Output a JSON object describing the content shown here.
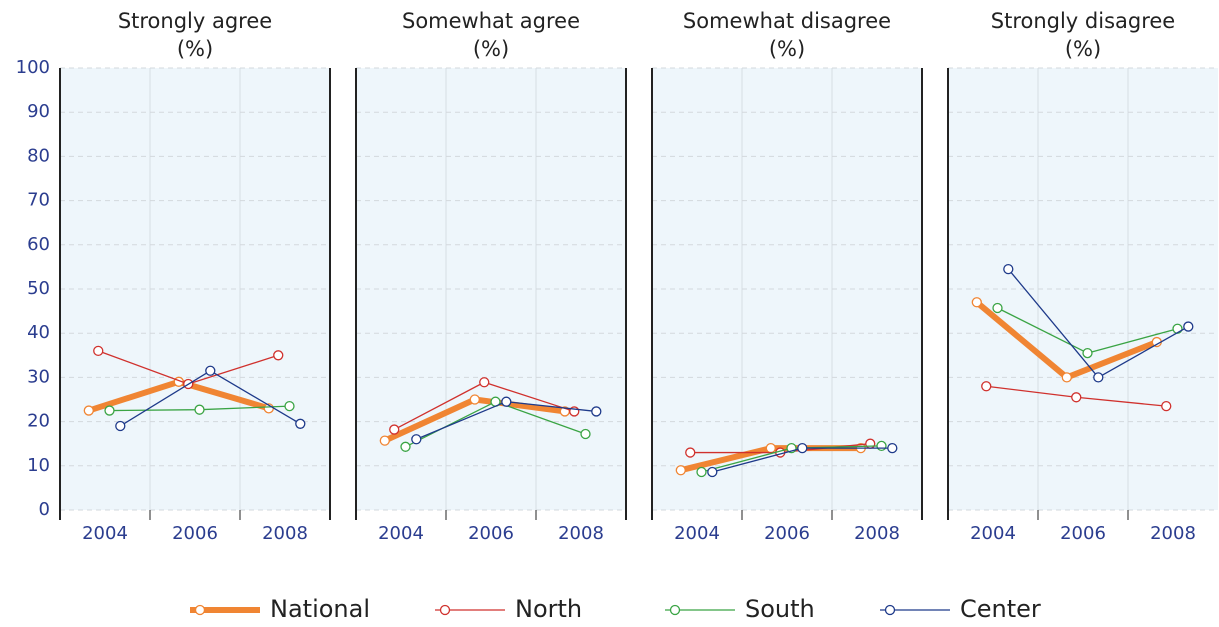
{
  "chart_data": [
    {
      "type": "line",
      "title": "Strongly agree",
      "subtitle": "(%)",
      "categories": [
        "2004",
        "2006",
        "2008"
      ],
      "ylim": [
        0,
        100
      ],
      "yticks": [
        0,
        10,
        20,
        30,
        40,
        50,
        60,
        70,
        80,
        90,
        100
      ],
      "grid": true,
      "series": [
        {
          "name": "National",
          "color": "#f08533",
          "width": 6,
          "values": [
            22.5,
            29,
            23
          ]
        },
        {
          "name": "North",
          "color": "#d0312d",
          "width": 1.3,
          "values": [
            36,
            28.5,
            35
          ]
        },
        {
          "name": "South",
          "color": "#3aa444",
          "width": 1.3,
          "values": [
            22.5,
            22.7,
            23.5
          ]
        },
        {
          "name": "Center",
          "color": "#1e3a8a",
          "width": 1.3,
          "values": [
            19,
            31.5,
            19.5
          ]
        }
      ]
    },
    {
      "type": "line",
      "title": "Somewhat agree",
      "subtitle": "(%)",
      "categories": [
        "2004",
        "2006",
        "2008"
      ],
      "ylim": [
        0,
        100
      ],
      "yticks": [
        0,
        10,
        20,
        30,
        40,
        50,
        60,
        70,
        80,
        90,
        100
      ],
      "grid": true,
      "series": [
        {
          "name": "National",
          "color": "#f08533",
          "width": 6,
          "values": [
            15.7,
            25,
            22.3
          ]
        },
        {
          "name": "North",
          "color": "#d0312d",
          "width": 1.3,
          "values": [
            18.2,
            28.9,
            22.3
          ]
        },
        {
          "name": "South",
          "color": "#3aa444",
          "width": 1.3,
          "values": [
            14.3,
            24.5,
            17.2
          ]
        },
        {
          "name": "Center",
          "color": "#1e3a8a",
          "width": 1.3,
          "values": [
            16,
            24.5,
            22.3
          ]
        }
      ]
    },
    {
      "type": "line",
      "title": "Somewhat disagree",
      "subtitle": "(%)",
      "categories": [
        "2004",
        "2006",
        "2008"
      ],
      "ylim": [
        0,
        100
      ],
      "yticks": [
        0,
        10,
        20,
        30,
        40,
        50,
        60,
        70,
        80,
        90,
        100
      ],
      "grid": true,
      "series": [
        {
          "name": "National",
          "color": "#f08533",
          "width": 6,
          "values": [
            9,
            14,
            14
          ]
        },
        {
          "name": "North",
          "color": "#d0312d",
          "width": 1.3,
          "values": [
            13,
            13,
            15
          ]
        },
        {
          "name": "South",
          "color": "#3aa444",
          "width": 1.3,
          "values": [
            8.6,
            14,
            14.5
          ]
        },
        {
          "name": "Center",
          "color": "#1e3a8a",
          "width": 1.3,
          "values": [
            8.6,
            14,
            14
          ]
        }
      ]
    },
    {
      "type": "line",
      "title": "Strongly disagree",
      "subtitle": "(%)",
      "categories": [
        "2004",
        "2006",
        "2008"
      ],
      "ylim": [
        0,
        100
      ],
      "yticks": [
        0,
        10,
        20,
        30,
        40,
        50,
        60,
        70,
        80,
        90,
        100
      ],
      "grid": true,
      "series": [
        {
          "name": "National",
          "color": "#f08533",
          "width": 6,
          "values": [
            47,
            30,
            38
          ]
        },
        {
          "name": "North",
          "color": "#d0312d",
          "width": 1.3,
          "values": [
            28,
            25.5,
            23.5
          ]
        },
        {
          "name": "South",
          "color": "#3aa444",
          "width": 1.3,
          "values": [
            45.7,
            35.5,
            41
          ]
        },
        {
          "name": "Center",
          "color": "#1e3a8a",
          "width": 1.3,
          "values": [
            54.5,
            30,
            41.5
          ]
        }
      ]
    }
  ]
}
